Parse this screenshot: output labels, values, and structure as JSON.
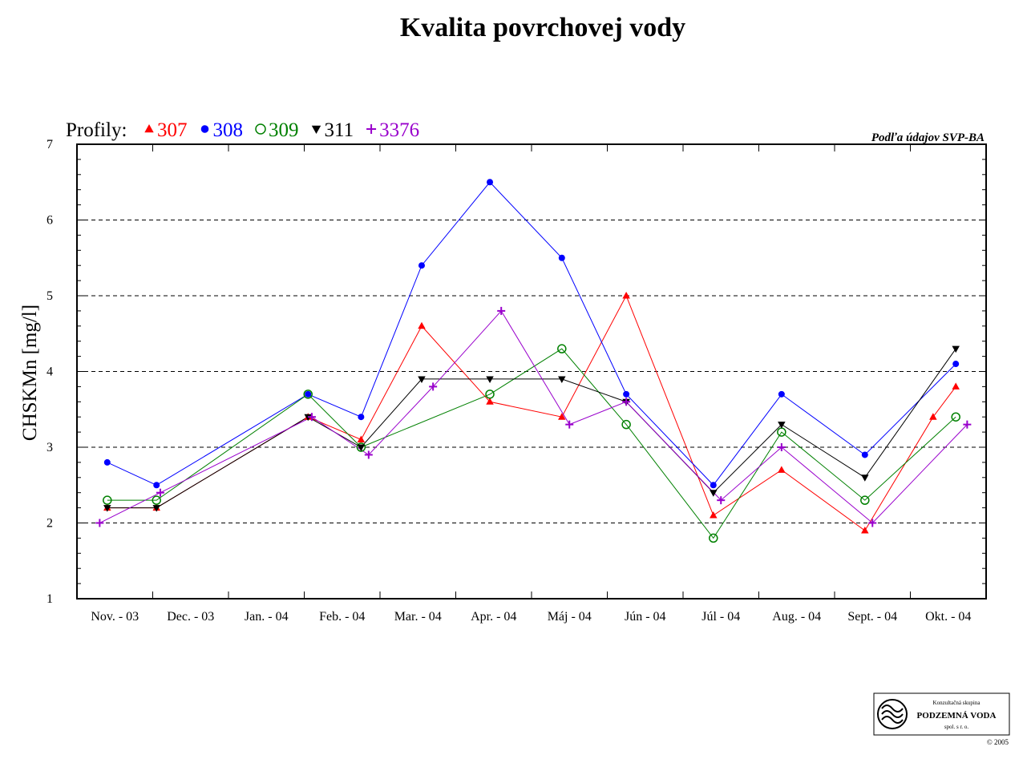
{
  "chart_data": {
    "type": "line",
    "title": "Kvalita povrchovej vody",
    "ylabel": "CHSKMn [mg/l]",
    "xlabel": "",
    "ylim": [
      1,
      7
    ],
    "yticks": [
      "1",
      "2",
      "3",
      "4",
      "5",
      "6",
      "7"
    ],
    "grid": "horizontal dashed",
    "legend_title": "Profily:",
    "legend_position": "top-left",
    "source": "Podľa údajov SVP-BA",
    "categories": [
      "Nov. - 03",
      "Dec. - 03",
      "Jan. - 04",
      "Feb. - 04",
      "Mar. - 04",
      "Apr. - 04",
      "Máj - 04",
      "Jún - 04",
      "Júl - 04",
      "Aug. - 04",
      "Sept. - 04",
      "Okt. - 04"
    ],
    "series": [
      {
        "name": "307",
        "color": "#ff0000",
        "marker": "triangle-up",
        "points": [
          [
            0.4,
            2.2
          ],
          [
            1.05,
            2.2
          ],
          [
            3.05,
            3.4
          ],
          [
            3.75,
            3.1
          ],
          [
            4.55,
            4.6
          ],
          [
            5.45,
            3.6
          ],
          [
            6.4,
            3.4
          ],
          [
            7.25,
            5.0
          ],
          [
            8.4,
            2.1
          ],
          [
            9.3,
            2.7
          ],
          [
            10.4,
            1.9
          ],
          [
            11.3,
            3.4
          ],
          [
            11.6,
            3.8
          ]
        ]
      },
      {
        "name": "308",
        "color": "#0000ff",
        "marker": "circle-filled",
        "points": [
          [
            0.4,
            2.8
          ],
          [
            1.05,
            2.5
          ],
          [
            3.05,
            3.7
          ],
          [
            3.75,
            3.4
          ],
          [
            4.55,
            5.4
          ],
          [
            5.45,
            6.5
          ],
          [
            6.4,
            5.5
          ],
          [
            7.25,
            3.7
          ],
          [
            8.4,
            2.5
          ],
          [
            9.3,
            3.7
          ],
          [
            10.4,
            2.9
          ],
          [
            11.6,
            4.1
          ]
        ]
      },
      {
        "name": "309",
        "color": "#008000",
        "marker": "circle-open",
        "points": [
          [
            0.4,
            2.3
          ],
          [
            1.05,
            2.3
          ],
          [
            3.05,
            3.7
          ],
          [
            3.75,
            3.0
          ],
          [
            5.45,
            3.7
          ],
          [
            6.4,
            4.3
          ],
          [
            7.25,
            3.3
          ],
          [
            8.4,
            1.8
          ],
          [
            9.3,
            3.2
          ],
          [
            10.4,
            2.3
          ],
          [
            11.6,
            3.4
          ]
        ]
      },
      {
        "name": "311",
        "color": "#000000",
        "marker": "triangle-down",
        "points": [
          [
            0.4,
            2.2
          ],
          [
            1.05,
            2.2
          ],
          [
            3.05,
            3.4
          ],
          [
            3.75,
            3.0
          ],
          [
            4.55,
            3.9
          ],
          [
            5.45,
            3.9
          ],
          [
            6.4,
            3.9
          ],
          [
            7.25,
            3.6
          ],
          [
            8.4,
            2.4
          ],
          [
            9.3,
            3.3
          ],
          [
            10.4,
            2.6
          ],
          [
            11.6,
            4.3
          ]
        ]
      },
      {
        "name": "3376",
        "color": "#9900cc",
        "marker": "plus",
        "points": [
          [
            0.3,
            2.0
          ],
          [
            1.1,
            2.4
          ],
          [
            3.1,
            3.4
          ],
          [
            3.85,
            2.9
          ],
          [
            4.7,
            3.8
          ],
          [
            5.6,
            4.8
          ],
          [
            6.5,
            3.3
          ],
          [
            7.25,
            3.6
          ],
          [
            8.5,
            2.3
          ],
          [
            9.3,
            3.0
          ],
          [
            10.5,
            2.0
          ],
          [
            11.75,
            3.3
          ]
        ]
      }
    ]
  },
  "logo": {
    "line1": "Konzultačná skupina",
    "line2": "PODZEMNÁ VODA",
    "line3": "spol. s r. o.",
    "copyright": "© 2005"
  }
}
